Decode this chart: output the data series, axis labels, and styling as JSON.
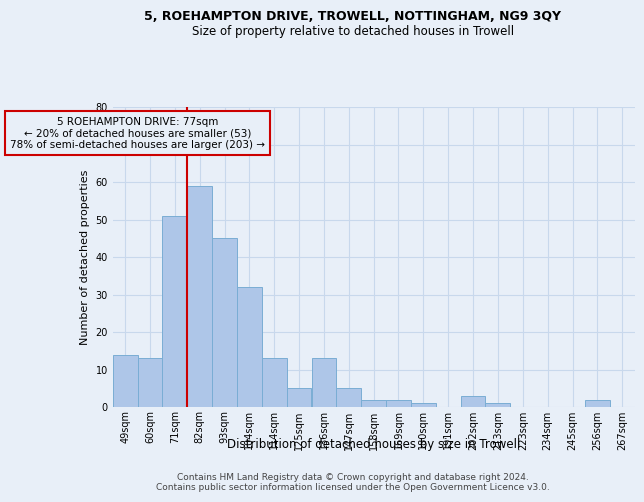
{
  "title1": "5, ROEHAMPTON DRIVE, TROWELL, NOTTINGHAM, NG9 3QY",
  "title2": "Size of property relative to detached houses in Trowell",
  "xlabel": "Distribution of detached houses by size in Trowell",
  "ylabel": "Number of detached properties",
  "categories": [
    "49sqm",
    "60sqm",
    "71sqm",
    "82sqm",
    "93sqm",
    "104sqm",
    "114sqm",
    "125sqm",
    "136sqm",
    "147sqm",
    "158sqm",
    "169sqm",
    "180sqm",
    "191sqm",
    "202sqm",
    "213sqm",
    "223sqm",
    "234sqm",
    "245sqm",
    "256sqm",
    "267sqm"
  ],
  "values": [
    14,
    13,
    51,
    59,
    45,
    32,
    13,
    5,
    13,
    5,
    2,
    2,
    1,
    0,
    3,
    1,
    0,
    0,
    0,
    2,
    0
  ],
  "bar_color": "#aec6e8",
  "bar_edge_color": "#7aadd4",
  "vline_x_idx": 2.5,
  "vline_color": "#cc0000",
  "annotation_text": "5 ROEHAMPTON DRIVE: 77sqm\n← 20% of detached houses are smaller (53)\n78% of semi-detached houses are larger (203) →",
  "annotation_box_edgecolor": "#cc0000",
  "ylim": [
    0,
    80
  ],
  "yticks": [
    0,
    10,
    20,
    30,
    40,
    50,
    60,
    70,
    80
  ],
  "grid_color": "#c8d8ec",
  "background_color": "#e8eff8",
  "footer": "Contains HM Land Registry data © Crown copyright and database right 2024.\nContains public sector information licensed under the Open Government Licence v3.0.",
  "title1_fontsize": 9,
  "title2_fontsize": 8.5,
  "ylabel_fontsize": 8,
  "xlabel_fontsize": 8.5,
  "tick_fontsize": 7,
  "footer_fontsize": 6.5
}
